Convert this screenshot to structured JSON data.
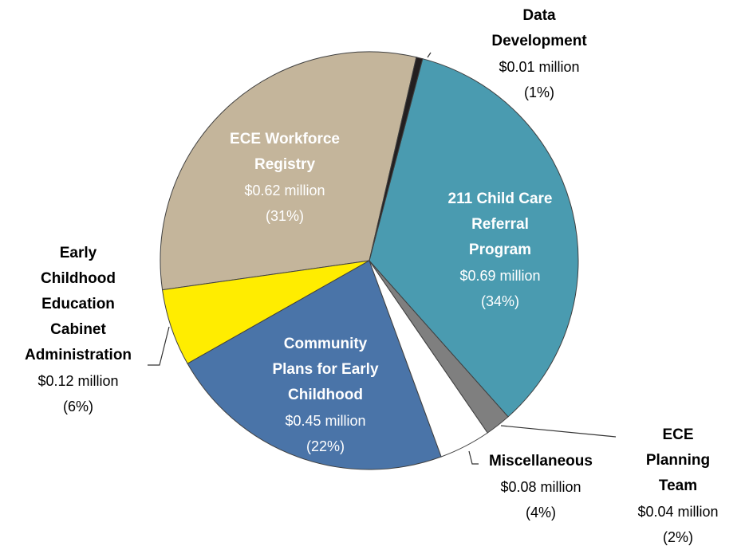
{
  "chart_data": {
    "type": "pie",
    "categories": [
      "Data\nDevelopment",
      "211 Child Care\nReferral\nProgram",
      "ECE Planning\nTeam",
      "Miscellaneous",
      "Community\nPlans for Early\nChildhood",
      "Early\nChildhood\nEducation\nCabinet\nAdministration",
      "ECE Workforce\nRegistry"
    ],
    "values": [
      0.01,
      0.69,
      0.04,
      0.08,
      0.45,
      0.12,
      0.62
    ],
    "value_labels": [
      "$0.01 million",
      "$0.69 million",
      "$0.04 million",
      "$0.08 million",
      "$0.45 million",
      "$0.12 million",
      "$0.62 million"
    ],
    "percents": [
      1,
      34,
      2,
      4,
      22,
      6,
      31
    ],
    "percent_labels": [
      "(1%)",
      "(34%)",
      "(2%)",
      "(4%)",
      "(22%)",
      "(6%)",
      "(31%)"
    ],
    "colors": [
      "#231f20",
      "#4a9bb0",
      "#7f7f7f",
      "#ffffff",
      "#4a74a8",
      "#ffed00",
      "#c4b59b"
    ]
  }
}
